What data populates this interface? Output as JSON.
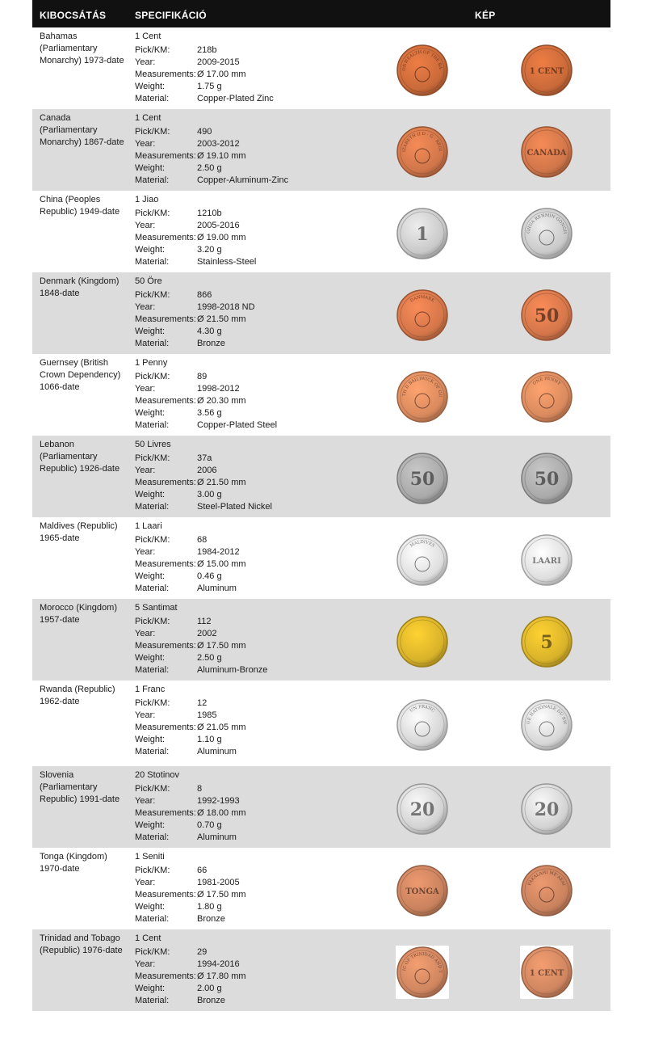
{
  "header": {
    "issuer": "KIBOCSÁTÁS",
    "spec": "SPECIFIKÁCIÓ",
    "image": "KÉP"
  },
  "field_labels": {
    "pick": "Pick/KM:",
    "year": "Year:",
    "measure": "Measurements:",
    "weight": "Weight:",
    "material": "Material:"
  },
  "rows": [
    {
      "issuer": "Bahamas (Parliamentary Monarchy) 1973-date",
      "denomination": "1 Cent",
      "pick": "218b",
      "year": "2009-2015",
      "measure": "Ø 17.00 mm",
      "weight": "1.75 g",
      "material": "Copper-Plated Zinc",
      "coin_color": "#c96a3a",
      "obverse_text": "COMMONWEALTH OF THE BAHAMAS",
      "reverse_text": "1 CENT"
    },
    {
      "issuer": "Canada (Parliamentary Monarchy) 1867-date",
      "denomination": "1 Cent",
      "pick": "490",
      "year": "2003-2012",
      "measure": "Ø 19.10 mm",
      "weight": "2.50 g",
      "material": "Copper-Aluminum-Zinc",
      "coin_color": "#d0764a",
      "obverse_text": "ELIZABETH II D · G · REGINA",
      "reverse_text": "CANADA"
    },
    {
      "issuer": "China (Peoples Republic) 1949-date",
      "denomination": "1 Jiao",
      "pick": "1210b",
      "year": "2005-2016",
      "measure": "Ø 19.00 mm",
      "weight": "3.20 g",
      "material": "Stainless-Steel",
      "coin_color": "#c9c9c9",
      "obverse_text": "1",
      "reverse_text": "ZHONGHUA RENMIN GONGHEGUO"
    },
    {
      "issuer": "Denmark (Kingdom) 1848-date",
      "denomination": "50 Öre",
      "pick": "866",
      "year": "1998-2018 ND",
      "measure": "Ø 21.50 mm",
      "weight": "4.30 g",
      "material": "Bronze",
      "coin_color": "#d4764a",
      "obverse_text": "DANMARK",
      "reverse_text": "50"
    },
    {
      "issuer": "Guernsey (British Crown Dependency) 1066-date",
      "denomination": "1 Penny",
      "pick": "89",
      "year": "1998-2012",
      "measure": "Ø 20.30 mm",
      "weight": "3.56 g",
      "material": "Copper-Plated Steel",
      "coin_color": "#d98a5e",
      "obverse_text": "ELIZABETH II BAILIWICK OF GUERNSEY",
      "reverse_text": "ONE PENNY"
    },
    {
      "issuer": "Lebanon (Parliamentary Republic) 1926-date",
      "denomination": "50 Livres",
      "pick": "37a",
      "year": "2006",
      "measure": "Ø 21.50 mm",
      "weight": "3.00 g",
      "material": "Steel-Plated Nickel",
      "coin_color": "#a9a9a9",
      "obverse_text": "50",
      "reverse_text": "50"
    },
    {
      "issuer": "Maldives (Republic) 1965-date",
      "denomination": "1 Laari",
      "pick": "68",
      "year": "1984-2012",
      "measure": "Ø 15.00 mm",
      "weight": "0.46 g",
      "material": "Aluminum",
      "coin_color": "#dedede",
      "obverse_text": "MALDIVES",
      "reverse_text": "LAARI"
    },
    {
      "issuer": "Morocco (Kingdom) 1957-date",
      "denomination": "5 Santimat",
      "pick": "112",
      "year": "2002",
      "measure": "Ø 17.50 mm",
      "weight": "2.50 g",
      "material": "Aluminum-Bronze",
      "coin_color": "#d8b22a",
      "obverse_text": "",
      "reverse_text": "5"
    },
    {
      "issuer": "Rwanda (Republic) 1962-date",
      "denomination": "1 Franc",
      "pick": "12",
      "year": "1985",
      "measure": "Ø 21.05 mm",
      "weight": "1.10 g",
      "material": "Aluminum",
      "coin_color": "#d6d6d6",
      "obverse_text": "UN FRANC",
      "reverse_text": "BANQUE NATIONALE DU RWANDA"
    },
    {
      "issuer": "Slovenia (Parliamentary Republic) 1991-date",
      "denomination": "20 Stotinov",
      "pick": "8",
      "year": "1992-1993",
      "measure": "Ø 18.00 mm",
      "weight": "0.70 g",
      "material": "Aluminum",
      "coin_color": "#d2d2d2",
      "obverse_text": "20",
      "reverse_text": "20"
    },
    {
      "issuer": "Tonga (Kingdom) 1970-date",
      "denomination": "1 Seniti",
      "pick": "66",
      "year": "1981-2005",
      "measure": "Ø 17.50 mm",
      "weight": "1.80 g",
      "material": "Bronze",
      "coin_color": "#c9825e",
      "obverse_text": "TONGA",
      "reverse_text": "FAKALAHI ME'AKAI"
    },
    {
      "issuer": "Trinidad and Tobago (Republic) 1976-date",
      "denomination": "1 Cent",
      "pick": "29",
      "year": "1994-2016",
      "measure": "Ø 17.80 mm",
      "weight": "2.00 g",
      "material": "Bronze",
      "coin_color": "#cf8660",
      "obverse_text": "REPUBLIC OF TRINIDAD AND TOBAGO",
      "reverse_text": "1 CENT"
    }
  ]
}
